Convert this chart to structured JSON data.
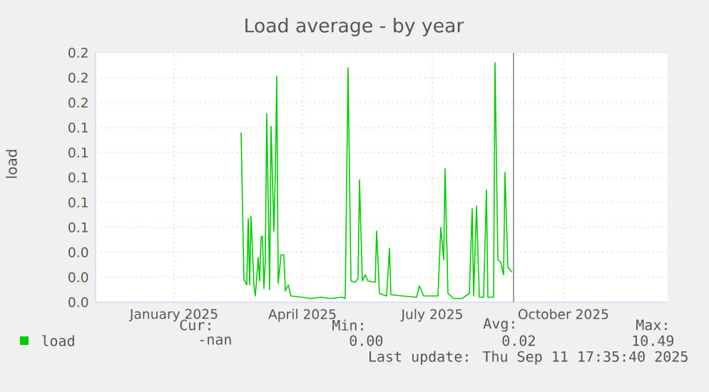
{
  "chart_data": {
    "type": "line",
    "title": "Load average - by year",
    "ylabel": "load",
    "xlim": [
      "2024-11-22",
      "2025-12-28"
    ],
    "xticks": [
      {
        "value": "2025-01-16",
        "label": "January 2025"
      },
      {
        "value": "2025-04-16",
        "label": "April 2025"
      },
      {
        "value": "2025-07-16",
        "label": "July 2025"
      },
      {
        "value": "2025-10-16",
        "label": "October 2025"
      }
    ],
    "ylim": [
      0,
      0.2
    ],
    "yticks": [
      {
        "value": 0,
        "label": "0.0"
      },
      {
        "value": 0.02,
        "label": "0.0"
      },
      {
        "value": 0.04,
        "label": "0.0"
      },
      {
        "value": 0.06,
        "label": "0.1"
      },
      {
        "value": 0.08,
        "label": "0.1"
      },
      {
        "value": 0.1,
        "label": "0.1"
      },
      {
        "value": 0.12,
        "label": "0.1"
      },
      {
        "value": 0.14,
        "label": "0.1"
      },
      {
        "value": 0.16,
        "label": "0.2"
      },
      {
        "value": 0.18,
        "label": "0.2"
      },
      {
        "value": 0.2,
        "label": "0.2"
      }
    ],
    "grid": true,
    "legend": "bottom",
    "ref_lines": [
      {
        "axis": "x",
        "value": "2025-09-11",
        "color": "#888888"
      }
    ],
    "series": [
      {
        "name": "load",
        "color": "#00cc00",
        "x": [
          "2025-03-04",
          "2025-03-06",
          "2025-03-08",
          "2025-03-09",
          "2025-03-10",
          "2025-03-11",
          "2025-03-13",
          "2025-03-14",
          "2025-03-16",
          "2025-03-17",
          "2025-03-18",
          "2025-03-19",
          "2025-03-20",
          "2025-03-21",
          "2025-03-22",
          "2025-03-24",
          "2025-03-25",
          "2025-03-27",
          "2025-03-28",
          "2025-03-29",
          "2025-03-30",
          "2025-04-01",
          "2025-04-03",
          "2025-04-04",
          "2025-04-06",
          "2025-04-08",
          "2025-04-15",
          "2025-04-22",
          "2025-04-29",
          "2025-05-06",
          "2025-05-14",
          "2025-05-16",
          "2025-05-18",
          "2025-05-20",
          "2025-05-23",
          "2025-05-25",
          "2025-05-26",
          "2025-05-28",
          "2025-05-30",
          "2025-06-01",
          "2025-06-06",
          "2025-06-07",
          "2025-06-09",
          "2025-06-14",
          "2025-06-16",
          "2025-06-17",
          "2025-06-25",
          "2025-07-05",
          "2025-07-07",
          "2025-07-10",
          "2025-07-20",
          "2025-07-22",
          "2025-07-24",
          "2025-07-25",
          "2025-07-27",
          "2025-07-31",
          "2025-08-06",
          "2025-08-11",
          "2025-08-13",
          "2025-08-14",
          "2025-08-16",
          "2025-08-18",
          "2025-08-21",
          "2025-08-23",
          "2025-08-24",
          "2025-08-28",
          "2025-08-29",
          "2025-08-31",
          "2025-09-02",
          "2025-09-04",
          "2025-09-05",
          "2025-09-07",
          "2025-09-10"
        ],
        "values": [
          0.136,
          0.018,
          0.014,
          0.067,
          0.014,
          0.069,
          0.013,
          0.005,
          0.036,
          0.017,
          0.052,
          0.053,
          0.011,
          0.034,
          0.151,
          0.01,
          0.141,
          0.057,
          0.103,
          0.181,
          0.015,
          0.038,
          0.038,
          0.009,
          0.014,
          0.005,
          0.004,
          0.003,
          0.004,
          0.003,
          0.004,
          0.003,
          0.188,
          0.017,
          0.016,
          0.019,
          0.098,
          0.017,
          0.022,
          0.017,
          0.016,
          0.057,
          0.007,
          0.005,
          0.043,
          0.006,
          0.005,
          0.004,
          0.013,
          0.005,
          0.005,
          0.06,
          0.034,
          0.107,
          0.007,
          0.003,
          0.003,
          0.007,
          0.075,
          0.005,
          0.077,
          0.004,
          0.004,
          0.09,
          0.004,
          0.004,
          0.192,
          0.034,
          0.032,
          0.022,
          0.104,
          0.028,
          0.024
        ]
      }
    ],
    "annotations": [
      "Cur:",
      "-nan",
      "Min:",
      "0.00",
      "Avg:",
      "0.02",
      "Max:",
      "10.49",
      "Last update: Thu Sep 11 17:35:40 2025"
    ]
  }
}
